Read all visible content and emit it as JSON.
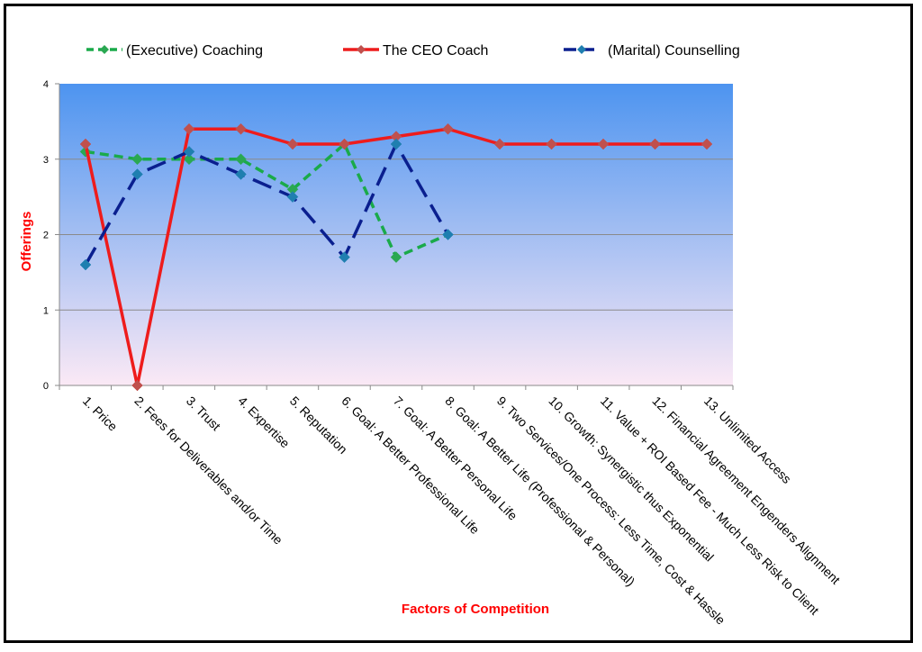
{
  "chart_data": {
    "type": "line",
    "xlabel": "Factors of Competition",
    "ylabel": "Offerings",
    "ylim": [
      0,
      4
    ],
    "yticks": [
      "0",
      "1",
      "2",
      "3",
      "4"
    ],
    "grid": true,
    "legend_position": "top",
    "categories": [
      "1. Price",
      "2. Fees for Deliverables and/or Time",
      "3. Trust",
      "4. Expertise",
      "5. Reputation",
      "6. Goal: A Better Professional Life",
      "7. Goal: A Better Personal Life",
      "8. Goal: A Better Life (Professional & Personal)",
      "9. Two Services/One Process: Less Time, Cost & Hassle",
      "10. Growth: Synergistic thus Exponential",
      "11. Value + ROI Based Fee - Much Less Risk to Client",
      "12. Financial Agreement Engenders Alignment",
      "13. Unlimited Access"
    ],
    "series": [
      {
        "name": "(Executive) Coaching",
        "color": "#1aaa4a",
        "line_style": "dashed",
        "marker_color": "#2aa852",
        "values": [
          3.1,
          3.0,
          3.0,
          3.0,
          2.6,
          3.2,
          1.7,
          2.0,
          null,
          null,
          null,
          null,
          null
        ]
      },
      {
        "name": "The CEO Coach",
        "color": "#ee1c1c",
        "line_style": "solid",
        "marker_color": "#c0504d",
        "values": [
          3.2,
          0.0,
          3.4,
          3.4,
          3.2,
          3.2,
          3.3,
          3.4,
          3.2,
          3.2,
          3.2,
          3.2,
          3.2
        ]
      },
      {
        "name": "(Marital) Counselling",
        "color": "#0a1f8f",
        "line_style": "dashed",
        "marker_color": "#1f7fb0",
        "values": [
          1.6,
          2.8,
          3.1,
          2.8,
          2.5,
          1.7,
          3.2,
          2.0,
          null,
          null,
          null,
          null,
          null
        ]
      }
    ],
    "plot_background": {
      "top": "#4d94f0",
      "bottom": "#fbe9f5"
    }
  }
}
